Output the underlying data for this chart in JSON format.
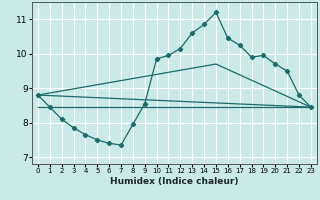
{
  "xlabel": "Humidex (Indice chaleur)",
  "xlim": [
    -0.5,
    23.5
  ],
  "ylim": [
    6.8,
    11.5
  ],
  "yticks": [
    7,
    8,
    9,
    10,
    11
  ],
  "xticks": [
    0,
    1,
    2,
    3,
    4,
    5,
    6,
    7,
    8,
    9,
    10,
    11,
    12,
    13,
    14,
    15,
    16,
    17,
    18,
    19,
    20,
    21,
    22,
    23
  ],
  "bg_color": "#caeae8",
  "line_color": "#1a6b6a",
  "grid_color": "#ffffff",
  "main_series": {
    "x": [
      0,
      1,
      2,
      3,
      4,
      5,
      6,
      7,
      8,
      9,
      10,
      11,
      12,
      13,
      14,
      15,
      16,
      17,
      18,
      19,
      20,
      21,
      22,
      23
    ],
    "y": [
      8.8,
      8.45,
      8.1,
      7.85,
      7.65,
      7.5,
      7.4,
      7.35,
      7.95,
      8.55,
      9.85,
      9.95,
      10.15,
      10.6,
      10.85,
      11.2,
      10.45,
      10.25,
      9.9,
      9.95,
      9.7,
      9.5,
      8.8,
      8.45
    ]
  },
  "straight_lines": [
    {
      "x": [
        0,
        23
      ],
      "y": [
        8.8,
        8.45
      ]
    },
    {
      "x": [
        0,
        23
      ],
      "y": [
        8.45,
        8.45
      ]
    },
    {
      "x": [
        0,
        15,
        23
      ],
      "y": [
        8.8,
        9.7,
        8.45
      ]
    }
  ]
}
